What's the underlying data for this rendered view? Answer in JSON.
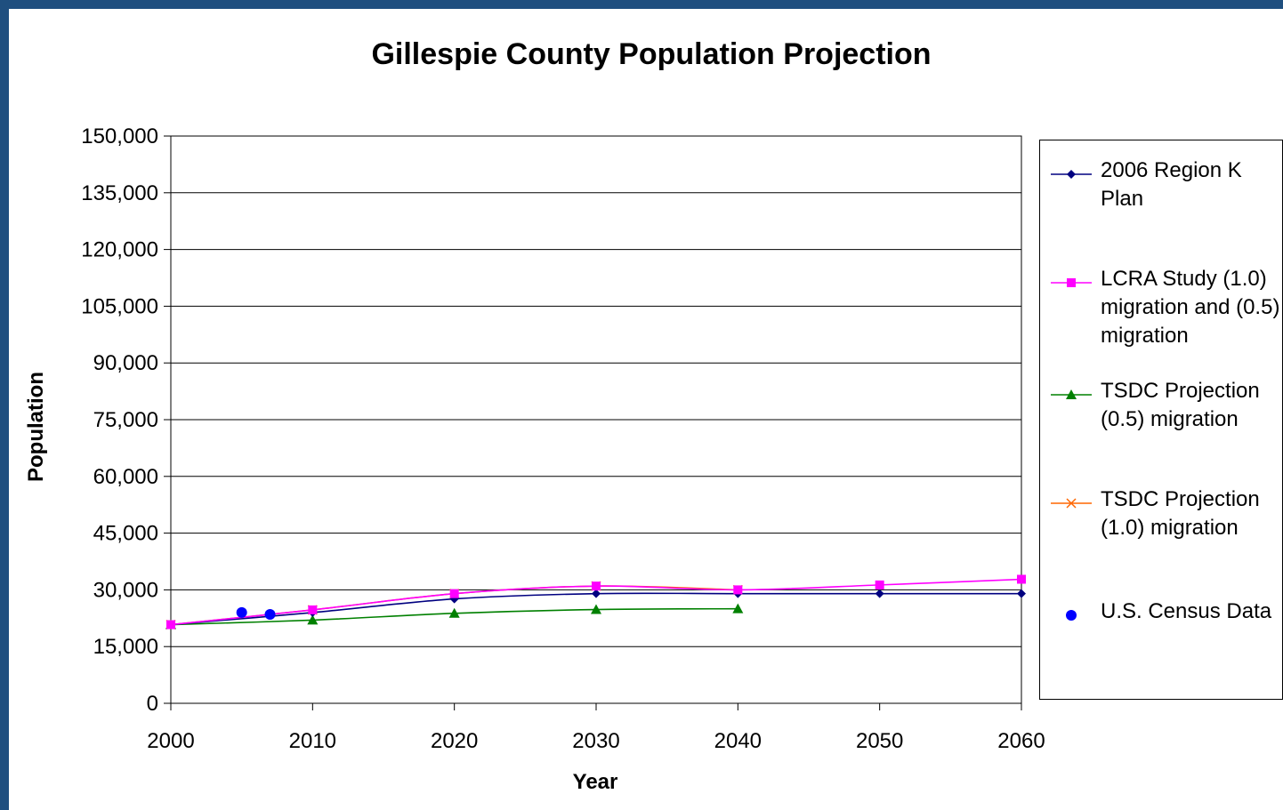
{
  "chart_data": {
    "type": "line",
    "title": "Gillespie County Population Projection",
    "xlabel": "Year",
    "ylabel": "Population",
    "xlim": [
      2000,
      2060
    ],
    "ylim": [
      0,
      150000
    ],
    "x_ticks": [
      2000,
      2010,
      2020,
      2030,
      2040,
      2050,
      2060
    ],
    "y_ticks": [
      0,
      15000,
      30000,
      45000,
      60000,
      75000,
      90000,
      105000,
      120000,
      135000,
      150000
    ],
    "y_tick_labels": [
      "0",
      "15,000",
      "30,000",
      "45,000",
      "60,000",
      "75,000",
      "90,000",
      "105,000",
      "120,000",
      "135,000",
      "150,000"
    ],
    "grid": "horizontal",
    "legend_position": "right",
    "series": [
      {
        "name": "2006 Region K Plan",
        "color": "#000080",
        "marker": "diamond",
        "points": [
          [
            2000,
            20800
          ],
          [
            2010,
            24000
          ],
          [
            2020,
            27600
          ],
          [
            2030,
            29000
          ],
          [
            2040,
            29000
          ],
          [
            2050,
            29000
          ],
          [
            2060,
            29000
          ]
        ]
      },
      {
        "name": "LCRA Study (1.0) migration and (0.5) migration",
        "color": "#ff00ff",
        "marker": "square",
        "points": [
          [
            2000,
            20800
          ],
          [
            2010,
            24700
          ],
          [
            2020,
            29000
          ],
          [
            2030,
            31000
          ],
          [
            2040,
            30000
          ],
          [
            2050,
            31300
          ],
          [
            2060,
            32800
          ]
        ]
      },
      {
        "name": "TSDC Projection (0.5) migration",
        "color": "#008000",
        "marker": "triangle",
        "points": [
          [
            2000,
            20800
          ],
          [
            2010,
            22000
          ],
          [
            2020,
            23800
          ],
          [
            2030,
            24800
          ],
          [
            2040,
            25000
          ]
        ]
      },
      {
        "name": "TSDC Projection (1.0) migration",
        "color": "#ff6600",
        "marker": "x",
        "points": [
          [
            2000,
            20800
          ],
          [
            2010,
            24700
          ],
          [
            2020,
            29000
          ],
          [
            2030,
            31000
          ],
          [
            2040,
            30000
          ]
        ]
      },
      {
        "name": "U.S. Census Data",
        "color": "#0000ff",
        "marker": "circle",
        "line": false,
        "points": [
          [
            2005,
            24000
          ],
          [
            2007,
            23500
          ]
        ]
      }
    ]
  }
}
